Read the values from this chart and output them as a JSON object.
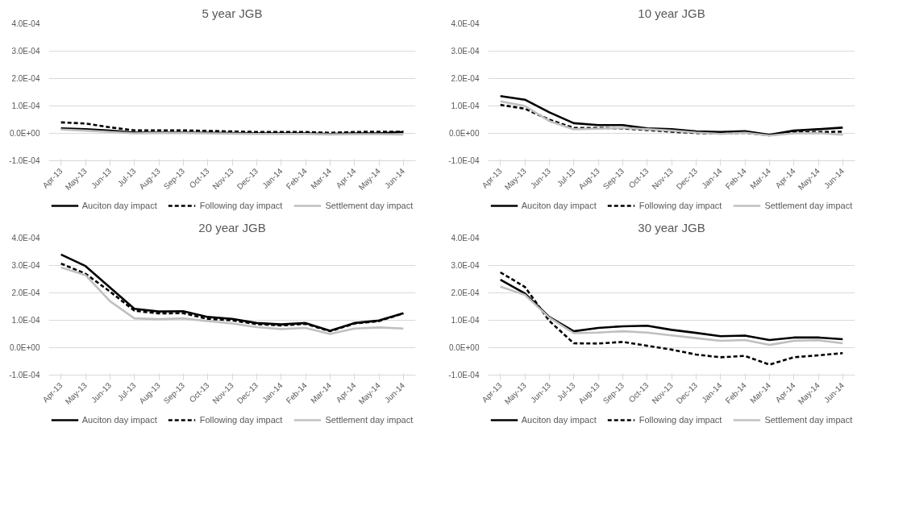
{
  "chart_data": [
    {
      "type": "line",
      "title": "5 year JGB",
      "categories": [
        "Apr-13",
        "May-13",
        "Jun-13",
        "Jul-13",
        "Aug-13",
        "Sep-13",
        "Oct-13",
        "Nov-13",
        "Dec-13",
        "Jan-14",
        "Feb-14",
        "Mar-14",
        "Apr-14",
        "May-14",
        "Jun-14"
      ],
      "series": [
        {
          "name": "Auciton day impact",
          "color": "#000000",
          "line_style": "solid",
          "values": [
            1.8e-05,
            1.5e-05,
            1e-05,
            3e-06,
            3e-06,
            3e-06,
            2e-06,
            1e-06,
            0.0,
            0.0,
            0.0,
            -2e-06,
            0.0,
            0.0,
            5e-06
          ]
        },
        {
          "name": "Following day impact",
          "color": "#000000",
          "line_style": "dashed",
          "values": [
            4e-05,
            3.6e-05,
            2.2e-05,
            1.1e-05,
            1.1e-05,
            1.1e-05,
            9e-06,
            7e-06,
            5e-06,
            5e-06,
            5e-06,
            2e-06,
            5e-06,
            6e-06,
            6e-06
          ]
        },
        {
          "name": "Settlement day impact",
          "color": "#bfbfbf",
          "line_style": "solid",
          "values": [
            1.4e-05,
            1e-05,
            5e-06,
            0.0,
            1e-06,
            1e-06,
            0.0,
            -1e-06,
            -2e-06,
            -2e-06,
            -2e-06,
            -4e-06,
            -3e-06,
            -3e-06,
            -4e-06
          ]
        }
      ],
      "ylim": [
        -0.0001,
        0.0004
      ],
      "yticks": [
        {
          "value": -0.0001,
          "label": "-1.0E-04"
        },
        {
          "value": 0,
          "label": "0.0E+00"
        },
        {
          "value": 0.0001,
          "label": "1.0E-04"
        },
        {
          "value": 0.0002,
          "label": "2.0E-04"
        },
        {
          "value": 0.0003,
          "label": "3.0E-04"
        },
        {
          "value": 0.0004,
          "label": "4.0E-04"
        }
      ],
      "grid": "y",
      "legend": "bottom",
      "marker": "none"
    },
    {
      "type": "line",
      "title": "10 year JGB",
      "categories": [
        "Apr-13",
        "May-13",
        "Jun-13",
        "Jul-13",
        "Aug-13",
        "Sep-13",
        "Oct-13",
        "Nov-13",
        "Dec-13",
        "Jan-14",
        "Feb-14",
        "Mar-14",
        "Apr-14",
        "May-14",
        "Jun-14"
      ],
      "series": [
        {
          "name": "Auciton day impact",
          "color": "#000000",
          "line_style": "solid",
          "values": [
            0.000136,
            0.000123,
            7.7e-05,
            3.7e-05,
            3e-05,
            3e-05,
            1.8e-05,
            1.5e-05,
            7e-06,
            5e-06,
            8e-06,
            -5e-06,
            1e-05,
            1.5e-05,
            2.1e-05
          ]
        },
        {
          "name": "Following day impact",
          "color": "#000000",
          "line_style": "dashed",
          "values": [
            0.000104,
            9e-05,
            5e-05,
            2e-05,
            2e-05,
            1.8e-05,
            1.2e-05,
            6e-06,
            1e-06,
            -1e-06,
            2e-06,
            -7e-06,
            4e-06,
            5e-06,
            6e-06
          ]
        },
        {
          "name": "Settlement day impact",
          "color": "#bfbfbf",
          "line_style": "solid",
          "values": [
            0.000117,
            0.0001,
            4.5e-05,
            1.5e-05,
            1.7e-05,
            2e-05,
            1.5e-05,
            1e-05,
            3e-06,
            -2e-06,
            2e-06,
            -8e-06,
            0.0,
            1e-06,
            -5e-06
          ]
        }
      ],
      "ylim": [
        -0.0001,
        0.0004
      ],
      "yticks": [
        {
          "value": -0.0001,
          "label": "-1.0E-04"
        },
        {
          "value": 0,
          "label": "0.0E+00"
        },
        {
          "value": 0.0001,
          "label": "1.0E-04"
        },
        {
          "value": 0.0002,
          "label": "2.0E-04"
        },
        {
          "value": 0.0003,
          "label": "3.0E-04"
        },
        {
          "value": 0.0004,
          "label": "4.0E-04"
        }
      ],
      "grid": "y",
      "legend": "bottom",
      "marker": "none"
    },
    {
      "type": "line",
      "title": "20 year JGB",
      "categories": [
        "Apr-13",
        "May-13",
        "Jun-13",
        "Jul-13",
        "Aug-13",
        "Sep-13",
        "Oct-13",
        "Nov-13",
        "Dec-13",
        "Jan-14",
        "Feb-14",
        "Mar-14",
        "Apr-14",
        "May-14",
        "Jun-14"
      ],
      "series": [
        {
          "name": "Auciton day impact",
          "color": "#000000",
          "line_style": "solid",
          "values": [
            0.00034,
            0.000298,
            0.00022,
            0.000142,
            0.000132,
            0.000133,
            0.000112,
            0.000105,
            9e-05,
            8.5e-05,
            9e-05,
            6.2e-05,
            9e-05,
            9.9e-05,
            0.000126
          ]
        },
        {
          "name": "Following day impact",
          "color": "#000000",
          "line_style": "dashed",
          "values": [
            0.000307,
            0.00027,
            0.000205,
            0.000135,
            0.000125,
            0.000126,
            0.000105,
            0.0001,
            8.6e-05,
            8.1e-05,
            8.7e-05,
            6e-05,
            8.8e-05,
            9.7e-05,
            0.000125
          ]
        },
        {
          "name": "Settlement day impact",
          "color": "#bfbfbf",
          "line_style": "solid",
          "values": [
            0.000293,
            0.000265,
            0.00017,
            0.000107,
            0.000104,
            0.000107,
            9.7e-05,
            8.8e-05,
            7.5e-05,
            6.8e-05,
            7.2e-05,
            5e-05,
            7e-05,
            7.4e-05,
            7e-05
          ]
        }
      ],
      "ylim": [
        -0.0001,
        0.0004
      ],
      "yticks": [
        {
          "value": -0.0001,
          "label": "-1.0E-04"
        },
        {
          "value": 0,
          "label": "0.0E+00"
        },
        {
          "value": 0.0001,
          "label": "1.0E-04"
        },
        {
          "value": 0.0002,
          "label": "2.0E-04"
        },
        {
          "value": 0.0003,
          "label": "3.0E-04"
        },
        {
          "value": 0.0004,
          "label": "4.0E-04"
        }
      ],
      "grid": "y",
      "legend": "bottom",
      "marker": "none"
    },
    {
      "type": "line",
      "title": "30 year JGB",
      "categories": [
        "Apr-13",
        "May-13",
        "Jun-13",
        "Jul-13",
        "Aug-13",
        "Sep-13",
        "Oct-13",
        "Nov-13",
        "Dec-13",
        "Jan-14",
        "Feb-14",
        "Mar-14",
        "Apr-14",
        "May-14",
        "Jun-14"
      ],
      "series": [
        {
          "name": "Auciton day impact",
          "color": "#000000",
          "line_style": "solid",
          "values": [
            0.000248,
            0.000198,
            0.000112,
            6e-05,
            7.2e-05,
            7.8e-05,
            8e-05,
            6.5e-05,
            5.4e-05,
            4.2e-05,
            4.4e-05,
            2.8e-05,
            3.7e-05,
            3.7e-05,
            3.1e-05
          ]
        },
        {
          "name": "Following day impact",
          "color": "#000000",
          "line_style": "dashed",
          "values": [
            0.000275,
            0.000222,
            9.8e-05,
            1.6e-05,
            1.5e-05,
            2.1e-05,
            7e-06,
            -7e-06,
            -2.5e-05,
            -3.5e-05,
            -3e-05,
            -6.2e-05,
            -3.5e-05,
            -2.8e-05,
            -2e-05
          ]
        },
        {
          "name": "Settlement day impact",
          "color": "#bfbfbf",
          "line_style": "solid",
          "values": [
            0.000223,
            0.000193,
            0.00011,
            5.3e-05,
            5.5e-05,
            6e-05,
            5.5e-05,
            4.5e-05,
            3.5e-05,
            2.5e-05,
            2.8e-05,
            1e-05,
            2.5e-05,
            2.7e-05,
            1.6e-05
          ]
        }
      ],
      "ylim": [
        -0.0001,
        0.0004
      ],
      "yticks": [
        {
          "value": -0.0001,
          "label": "-1.0E-04"
        },
        {
          "value": 0,
          "label": "0.0E+00"
        },
        {
          "value": 0.0001,
          "label": "1.0E-04"
        },
        {
          "value": 0.0002,
          "label": "2.0E-04"
        },
        {
          "value": 0.0003,
          "label": "3.0E-04"
        },
        {
          "value": 0.0004,
          "label": "4.0E-04"
        }
      ],
      "grid": "y",
      "legend": "bottom",
      "marker": "none"
    }
  ]
}
